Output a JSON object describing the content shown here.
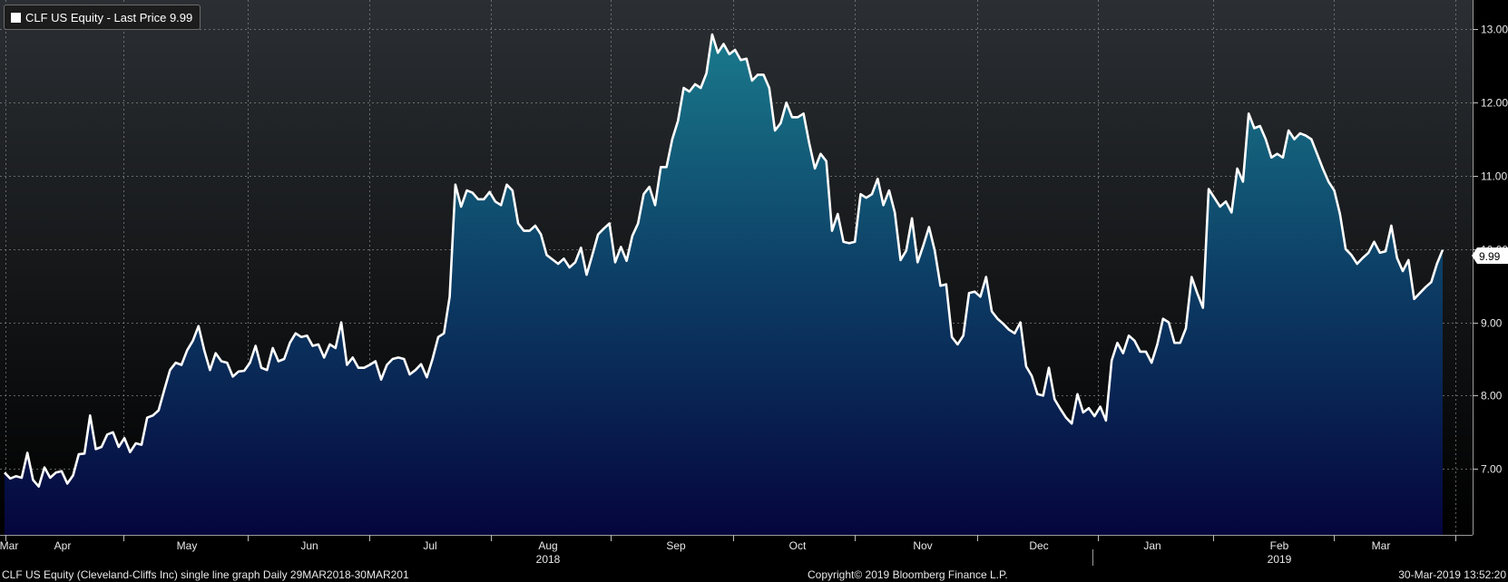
{
  "legend": {
    "label": "CLF US Equity - Last Price 9.99"
  },
  "footer": {
    "description": "CLF US Equity (Cleveland-Cliffs Inc) single line graph  Daily 29MAR2018-30MAR201",
    "copyright": "Copyright© 2019 Bloomberg Finance L.P.",
    "timestamp": "30-Mar-2019 13:52:20"
  },
  "colors": {
    "line": "#ffffff",
    "fill_top": "#1a7a8c",
    "fill_bottom": "#05053d",
    "background_top": "#2b2f33",
    "background_bottom": "#000000",
    "grid": "#8a8a8a"
  },
  "chart_data": {
    "type": "area",
    "title": "",
    "xlabel": "",
    "ylabel": "",
    "ylim": [
      6.1,
      13.4
    ],
    "y_ticks": [
      "7.00",
      "8.00",
      "9.00",
      "10.00",
      "11.00",
      "12.00",
      "13.00"
    ],
    "x_tick_labels": [
      "Mar",
      "Apr",
      "May",
      "Jun",
      "Jul",
      "Aug",
      "Sep",
      "Oct",
      "Nov",
      "Dec",
      "Jan",
      "Feb",
      "Mar"
    ],
    "year_labels": [
      "2018",
      "2019"
    ],
    "last_price_label": "9.99",
    "grid": true,
    "series": [
      {
        "name": "CLF US Equity - Last Price",
        "values": [
          6.95,
          6.87,
          6.9,
          6.88,
          7.22,
          6.85,
          6.76,
          7.02,
          6.88,
          6.95,
          6.97,
          6.8,
          6.91,
          7.2,
          7.21,
          7.73,
          7.27,
          7.3,
          7.47,
          7.5,
          7.3,
          7.42,
          7.23,
          7.35,
          7.33,
          7.7,
          7.73,
          7.8,
          8.08,
          8.35,
          8.45,
          8.42,
          8.62,
          8.75,
          8.95,
          8.62,
          8.35,
          8.58,
          8.47,
          8.45,
          8.26,
          8.33,
          8.34,
          8.45,
          8.68,
          8.38,
          8.35,
          8.65,
          8.47,
          8.5,
          8.72,
          8.85,
          8.8,
          8.82,
          8.68,
          8.7,
          8.52,
          8.7,
          8.65,
          9.0,
          8.42,
          8.52,
          8.38,
          8.38,
          8.42,
          8.47,
          8.22,
          8.42,
          8.5,
          8.52,
          8.5,
          8.29,
          8.35,
          8.43,
          8.25,
          8.5,
          8.8,
          8.85,
          9.35,
          10.88,
          10.58,
          10.8,
          10.77,
          10.68,
          10.68,
          10.78,
          10.65,
          10.6,
          10.88,
          10.8,
          10.35,
          10.25,
          10.25,
          10.32,
          10.2,
          9.92,
          9.86,
          9.8,
          9.87,
          9.75,
          9.82,
          10.02,
          9.65,
          9.92,
          10.2,
          10.28,
          10.35,
          9.82,
          10.03,
          9.84,
          10.18,
          10.35,
          10.75,
          10.85,
          10.6,
          11.12,
          11.12,
          11.5,
          11.75,
          12.2,
          12.15,
          12.25,
          12.2,
          12.4,
          12.93,
          12.68,
          12.8,
          12.66,
          12.72,
          12.58,
          12.6,
          12.3,
          12.38,
          12.38,
          12.2,
          11.62,
          11.72,
          12.0,
          11.8,
          11.8,
          11.85,
          11.45,
          11.1,
          11.3,
          11.2,
          10.25,
          10.48,
          10.1,
          10.08,
          10.1,
          10.75,
          10.7,
          10.75,
          10.96,
          10.6,
          10.8,
          10.5,
          9.85,
          9.98,
          10.42,
          9.82,
          10.05,
          10.3,
          9.98,
          9.5,
          9.52,
          8.8,
          8.7,
          8.82,
          9.4,
          9.42,
          9.35,
          9.62,
          9.15,
          9.05,
          8.98,
          8.9,
          8.85,
          9.0,
          8.4,
          8.27,
          8.02,
          8.0,
          8.38,
          7.95,
          7.82,
          7.7,
          7.62,
          8.02,
          7.77,
          7.83,
          7.72,
          7.85,
          7.66,
          8.48,
          8.72,
          8.58,
          8.82,
          8.75,
          8.6,
          8.6,
          8.45,
          8.7,
          9.05,
          9.0,
          8.72,
          8.72,
          8.92,
          9.62,
          9.4,
          9.2,
          10.82,
          10.7,
          10.58,
          10.65,
          10.5,
          11.1,
          10.92,
          11.85,
          11.65,
          11.68,
          11.5,
          11.25,
          11.3,
          11.25,
          11.62,
          11.5,
          11.58,
          11.55,
          11.5,
          11.3,
          11.1,
          10.92,
          10.8,
          10.48,
          10.0,
          9.92,
          9.8,
          9.88,
          9.95,
          10.1,
          9.95,
          9.97,
          10.32,
          9.88,
          9.7,
          9.85,
          9.32,
          9.4,
          9.48,
          9.55,
          9.8,
          9.99
        ]
      }
    ]
  }
}
